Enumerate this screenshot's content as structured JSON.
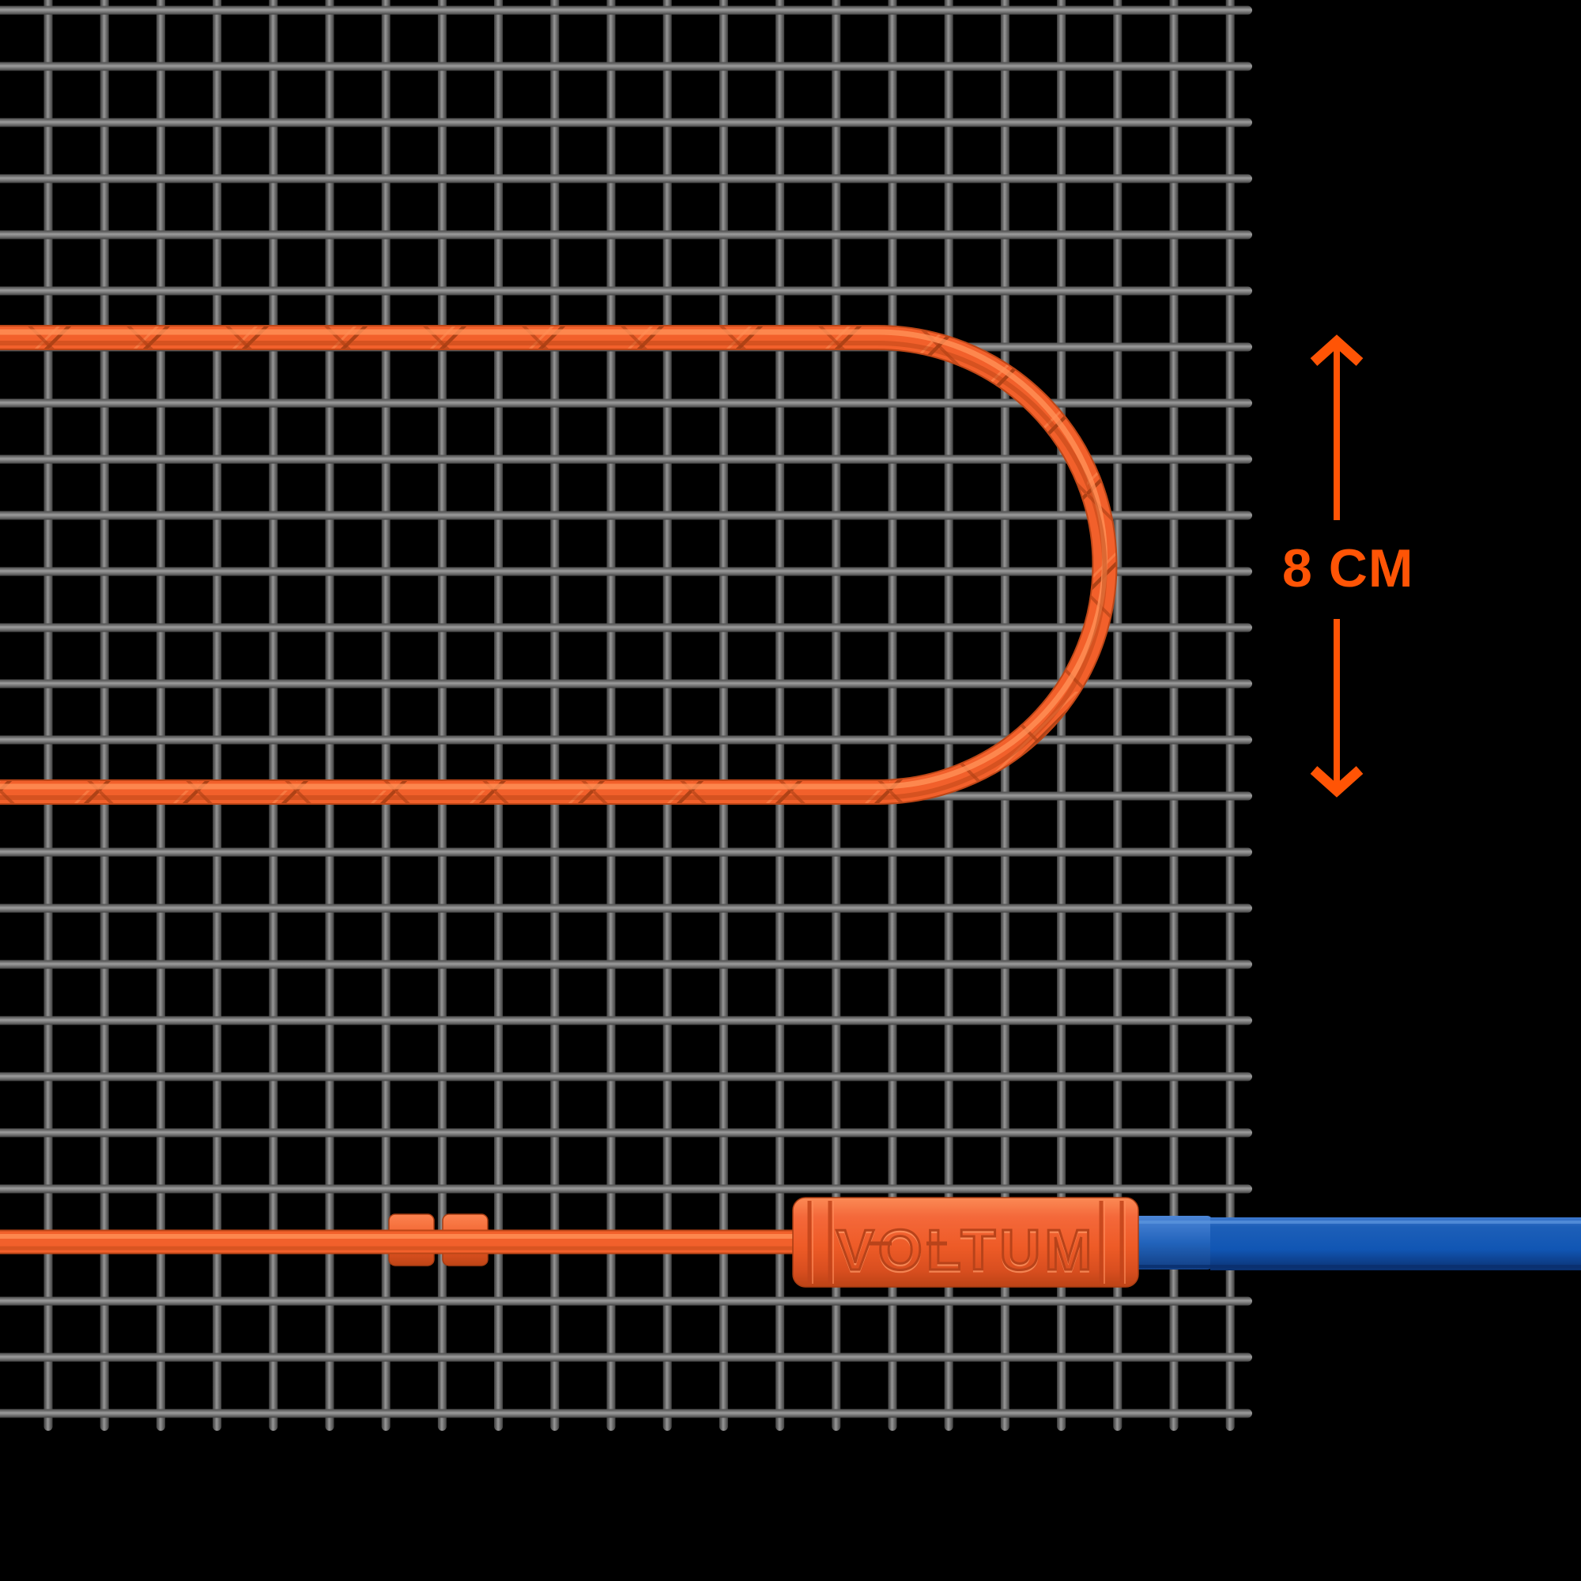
{
  "dimension": {
    "label": "8 CM",
    "arrow_icon": "double-ended-vertical-arrow"
  },
  "connector": {
    "brand": "VOLTUM"
  },
  "colors": {
    "accent_orange": "#FF5405",
    "cable_orange": "#F2602B",
    "cable_orange_light": "#FF9157",
    "cable_orange_dark": "#BC4617",
    "mesh_gray": "#8A8A8A",
    "cord_blue": "#1156B4",
    "background": "#000000"
  }
}
